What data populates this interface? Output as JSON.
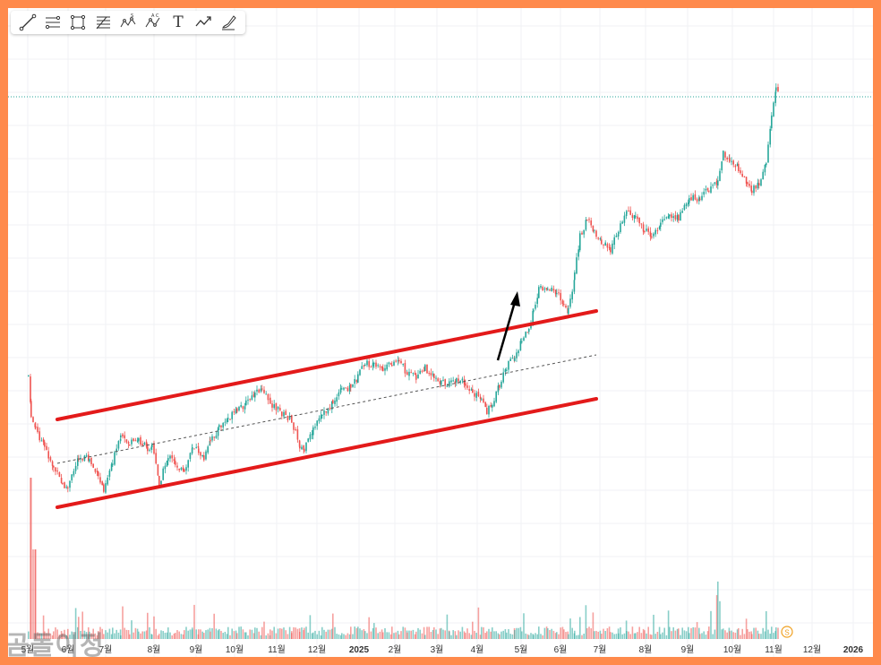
{
  "toolbar": {
    "tools": [
      "trendline-icon",
      "parallel-channel-icon",
      "rectangle-icon",
      "fib-retracement-icon",
      "xabcd-pattern-icon",
      "abcd-pattern-icon",
      "text-icon",
      "path-icon",
      "brush-icon"
    ]
  },
  "watermark": "곰돌이정",
  "colors": {
    "frame": "#ff8a4c",
    "up": "#26a69a",
    "down": "#ef5350",
    "channel": "#e31a1a",
    "midline": "#555555",
    "arrow": "#000000",
    "price_line": "#26a69a",
    "event_badge": "#f0a020"
  },
  "chart_data": {
    "type": "candlestick",
    "x_axis_labels": [
      "5월",
      "6월",
      "7월",
      "8월",
      "9월",
      "10월",
      "11월",
      "12월",
      "2025",
      "2월",
      "3월",
      "4월",
      "5월",
      "6월",
      "7월",
      "8월",
      "9월",
      "10월",
      "11월",
      "12월",
      "2026"
    ],
    "grid": true,
    "annotations": {
      "channel": "ascending parallel channel (upper and lower red trendlines with dashed midline)",
      "breakout_arrow": "up",
      "event_marker": "S"
    }
  }
}
